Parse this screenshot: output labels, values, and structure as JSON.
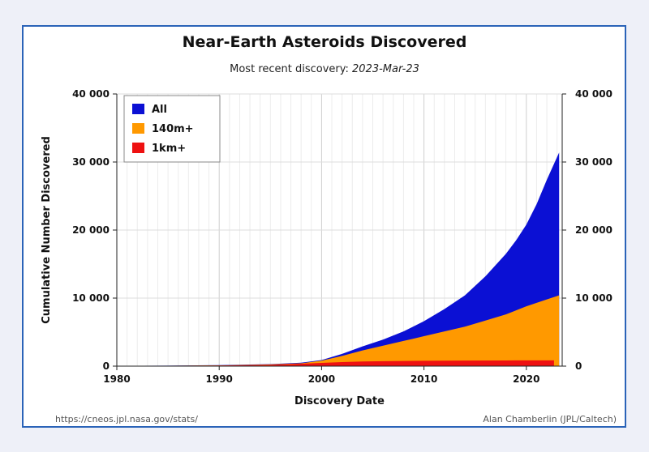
{
  "chart_data": {
    "type": "area",
    "title": "Near-Earth Asteroids Discovered",
    "subtitle_prefix": "Most recent discovery:",
    "subtitle_date": "2023-Mar-23",
    "xlabel": "Discovery Date",
    "ylabel": "Cumulative Number Discovered",
    "xlim": [
      1980,
      2023.5
    ],
    "ylim": [
      0,
      40000
    ],
    "x_ticks": [
      {
        "value": 1980,
        "label": "1980"
      },
      {
        "value": 1990,
        "label": "1990"
      },
      {
        "value": 2000,
        "label": "2000"
      },
      {
        "value": 2010,
        "label": "2010"
      },
      {
        "value": 2020,
        "label": "2020"
      }
    ],
    "y_ticks": [
      {
        "value": 0,
        "label": "0"
      },
      {
        "value": 10000,
        "label": "10 000"
      },
      {
        "value": 20000,
        "label": "20 000"
      },
      {
        "value": 30000,
        "label": "30 000"
      },
      {
        "value": 40000,
        "label": "40 000"
      }
    ],
    "legend_position": "top-left",
    "grid": true,
    "series": [
      {
        "name": "All",
        "color": "#0b10d4",
        "x": [
          1980,
          1985,
          1990,
          1995,
          1998,
          2000,
          2002,
          2004,
          2006,
          2008,
          2010,
          2012,
          2014,
          2016,
          2018,
          2019,
          2020,
          2021,
          2022,
          2023.2
        ],
        "y": [
          40,
          80,
          150,
          300,
          500,
          900,
          1800,
          2900,
          3900,
          5100,
          6600,
          8400,
          10400,
          13200,
          16500,
          18500,
          20800,
          23800,
          27400,
          31400
        ]
      },
      {
        "name": "140m+",
        "color": "#ff9900",
        "x": [
          1980,
          1985,
          1990,
          1995,
          1998,
          2000,
          2002,
          2004,
          2006,
          2008,
          2010,
          2012,
          2014,
          2016,
          2018,
          2019,
          2020,
          2021,
          2022,
          2023.2
        ],
        "y": [
          30,
          60,
          110,
          250,
          420,
          800,
          1500,
          2300,
          3000,
          3700,
          4400,
          5100,
          5800,
          6700,
          7600,
          8200,
          8800,
          9300,
          9800,
          10400
        ]
      },
      {
        "name": "1km+",
        "color": "#ee1111",
        "x": [
          1980,
          1985,
          1990,
          1995,
          1998,
          2000,
          2002,
          2004,
          2006,
          2008,
          2010,
          2014,
          2018,
          2022,
          2022.7
        ],
        "y": [
          20,
          50,
          90,
          200,
          350,
          480,
          600,
          680,
          730,
          760,
          790,
          820,
          840,
          850,
          855
        ]
      }
    ]
  },
  "footer": {
    "source": "https://cneos.jpl.nasa.gov/stats/",
    "credit": "Alan Chamberlin (JPL/Caltech)"
  }
}
